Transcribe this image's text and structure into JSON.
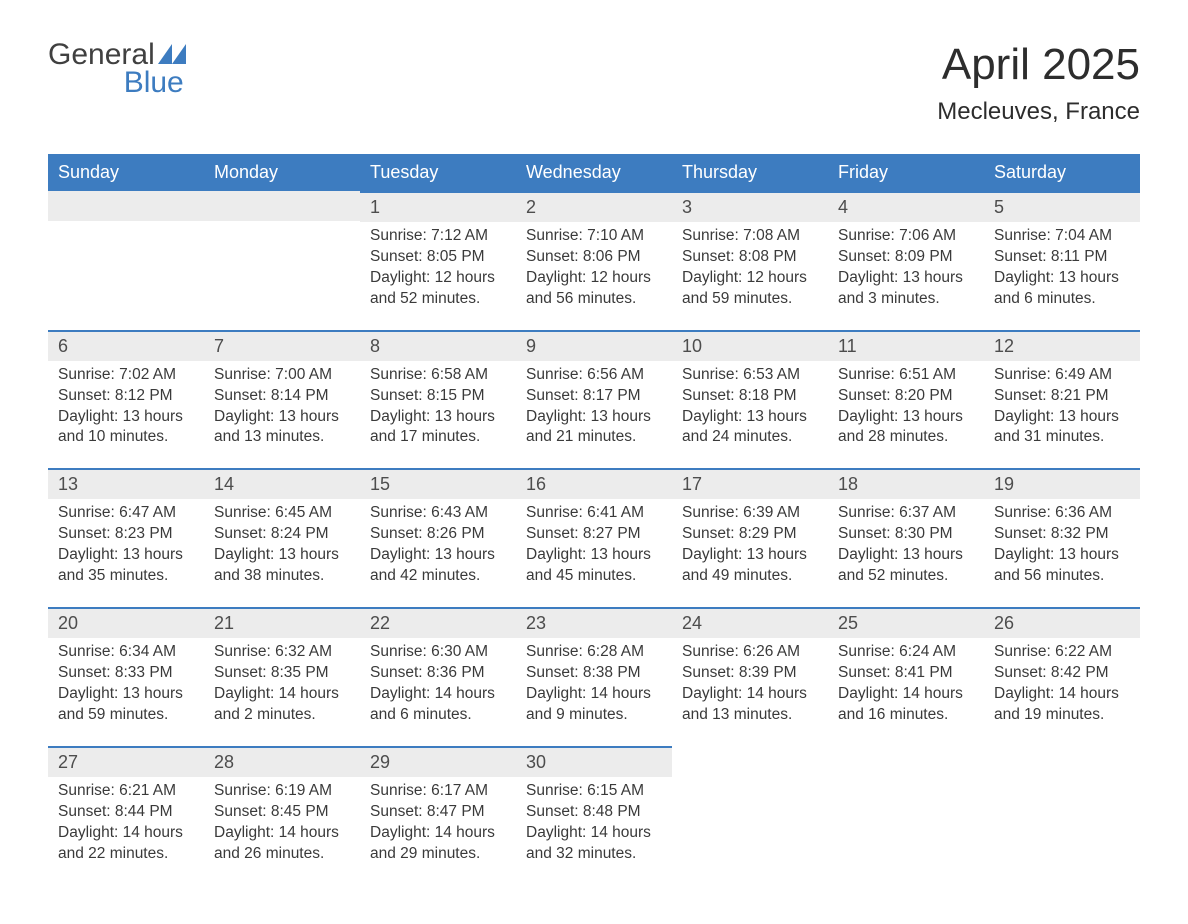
{
  "logo": {
    "word1": "General",
    "word2": "Blue",
    "shape_color": "#3d7cc0",
    "word1_color": "#404040",
    "word2_color": "#3d7cc0"
  },
  "header": {
    "month_title": "April 2025",
    "location": "Mecleuves, France"
  },
  "colors": {
    "header_bg": "#3d7cc0",
    "header_text": "#ffffff",
    "daynum_bg": "#ececec",
    "daynum_text": "#4d4d4d",
    "body_text": "#3a3a3a",
    "cell_border": "#3d7cc0",
    "page_bg": "#ffffff"
  },
  "weekdays": [
    "Sunday",
    "Monday",
    "Tuesday",
    "Wednesday",
    "Thursday",
    "Friday",
    "Saturday"
  ],
  "weeks": [
    [
      null,
      null,
      {
        "n": "1",
        "sr": "7:12 AM",
        "ss": "8:05 PM",
        "dl": "12 hours and 52 minutes."
      },
      {
        "n": "2",
        "sr": "7:10 AM",
        "ss": "8:06 PM",
        "dl": "12 hours and 56 minutes."
      },
      {
        "n": "3",
        "sr": "7:08 AM",
        "ss": "8:08 PM",
        "dl": "12 hours and 59 minutes."
      },
      {
        "n": "4",
        "sr": "7:06 AM",
        "ss": "8:09 PM",
        "dl": "13 hours and 3 minutes."
      },
      {
        "n": "5",
        "sr": "7:04 AM",
        "ss": "8:11 PM",
        "dl": "13 hours and 6 minutes."
      }
    ],
    [
      {
        "n": "6",
        "sr": "7:02 AM",
        "ss": "8:12 PM",
        "dl": "13 hours and 10 minutes."
      },
      {
        "n": "7",
        "sr": "7:00 AM",
        "ss": "8:14 PM",
        "dl": "13 hours and 13 minutes."
      },
      {
        "n": "8",
        "sr": "6:58 AM",
        "ss": "8:15 PM",
        "dl": "13 hours and 17 minutes."
      },
      {
        "n": "9",
        "sr": "6:56 AM",
        "ss": "8:17 PM",
        "dl": "13 hours and 21 minutes."
      },
      {
        "n": "10",
        "sr": "6:53 AM",
        "ss": "8:18 PM",
        "dl": "13 hours and 24 minutes."
      },
      {
        "n": "11",
        "sr": "6:51 AM",
        "ss": "8:20 PM",
        "dl": "13 hours and 28 minutes."
      },
      {
        "n": "12",
        "sr": "6:49 AM",
        "ss": "8:21 PM",
        "dl": "13 hours and 31 minutes."
      }
    ],
    [
      {
        "n": "13",
        "sr": "6:47 AM",
        "ss": "8:23 PM",
        "dl": "13 hours and 35 minutes."
      },
      {
        "n": "14",
        "sr": "6:45 AM",
        "ss": "8:24 PM",
        "dl": "13 hours and 38 minutes."
      },
      {
        "n": "15",
        "sr": "6:43 AM",
        "ss": "8:26 PM",
        "dl": "13 hours and 42 minutes."
      },
      {
        "n": "16",
        "sr": "6:41 AM",
        "ss": "8:27 PM",
        "dl": "13 hours and 45 minutes."
      },
      {
        "n": "17",
        "sr": "6:39 AM",
        "ss": "8:29 PM",
        "dl": "13 hours and 49 minutes."
      },
      {
        "n": "18",
        "sr": "6:37 AM",
        "ss": "8:30 PM",
        "dl": "13 hours and 52 minutes."
      },
      {
        "n": "19",
        "sr": "6:36 AM",
        "ss": "8:32 PM",
        "dl": "13 hours and 56 minutes."
      }
    ],
    [
      {
        "n": "20",
        "sr": "6:34 AM",
        "ss": "8:33 PM",
        "dl": "13 hours and 59 minutes."
      },
      {
        "n": "21",
        "sr": "6:32 AM",
        "ss": "8:35 PM",
        "dl": "14 hours and 2 minutes."
      },
      {
        "n": "22",
        "sr": "6:30 AM",
        "ss": "8:36 PM",
        "dl": "14 hours and 6 minutes."
      },
      {
        "n": "23",
        "sr": "6:28 AM",
        "ss": "8:38 PM",
        "dl": "14 hours and 9 minutes."
      },
      {
        "n": "24",
        "sr": "6:26 AM",
        "ss": "8:39 PM",
        "dl": "14 hours and 13 minutes."
      },
      {
        "n": "25",
        "sr": "6:24 AM",
        "ss": "8:41 PM",
        "dl": "14 hours and 16 minutes."
      },
      {
        "n": "26",
        "sr": "6:22 AM",
        "ss": "8:42 PM",
        "dl": "14 hours and 19 minutes."
      }
    ],
    [
      {
        "n": "27",
        "sr": "6:21 AM",
        "ss": "8:44 PM",
        "dl": "14 hours and 22 minutes."
      },
      {
        "n": "28",
        "sr": "6:19 AM",
        "ss": "8:45 PM",
        "dl": "14 hours and 26 minutes."
      },
      {
        "n": "29",
        "sr": "6:17 AM",
        "ss": "8:47 PM",
        "dl": "14 hours and 29 minutes."
      },
      {
        "n": "30",
        "sr": "6:15 AM",
        "ss": "8:48 PM",
        "dl": "14 hours and 32 minutes."
      },
      null,
      null,
      null
    ]
  ],
  "labels": {
    "sunrise": "Sunrise: ",
    "sunset": "Sunset: ",
    "daylight": "Daylight: "
  }
}
